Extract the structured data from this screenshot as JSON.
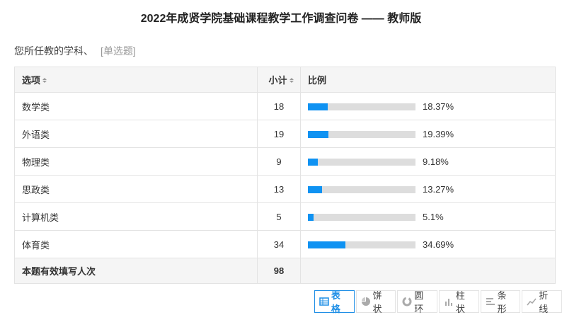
{
  "header": {
    "title": "2022年成贤学院基础课程教学工作调查问卷 —— 教师版"
  },
  "question": {
    "text": "您所任教的学科、",
    "type": "[单选题]"
  },
  "table": {
    "headers": [
      "选项",
      "小计",
      "比例"
    ],
    "rows": [
      {
        "option": "数学类",
        "count": 18,
        "percent": {
          "value": 18.37,
          "label": "18.37%"
        }
      },
      {
        "option": "外语类",
        "count": 19,
        "percent": {
          "value": 19.39,
          "label": "19.39%"
        }
      },
      {
        "option": "物理类",
        "count": 9,
        "percent": {
          "value": 9.18,
          "label": "9.18%"
        }
      },
      {
        "option": "思政类",
        "count": 13,
        "percent": {
          "value": 13.27,
          "label": "13.27%"
        }
      },
      {
        "option": "计算机类",
        "count": 5,
        "percent": {
          "value": 5.1,
          "label": "5.1%"
        }
      },
      {
        "option": "体育类",
        "count": 34,
        "percent": {
          "value": 34.69,
          "label": "34.69%"
        }
      }
    ],
    "total_label": "本题有效填写人次",
    "total": 98
  },
  "view_buttons": [
    "表格",
    "饼状",
    "圆环",
    "柱状",
    "条形",
    "折线"
  ]
}
